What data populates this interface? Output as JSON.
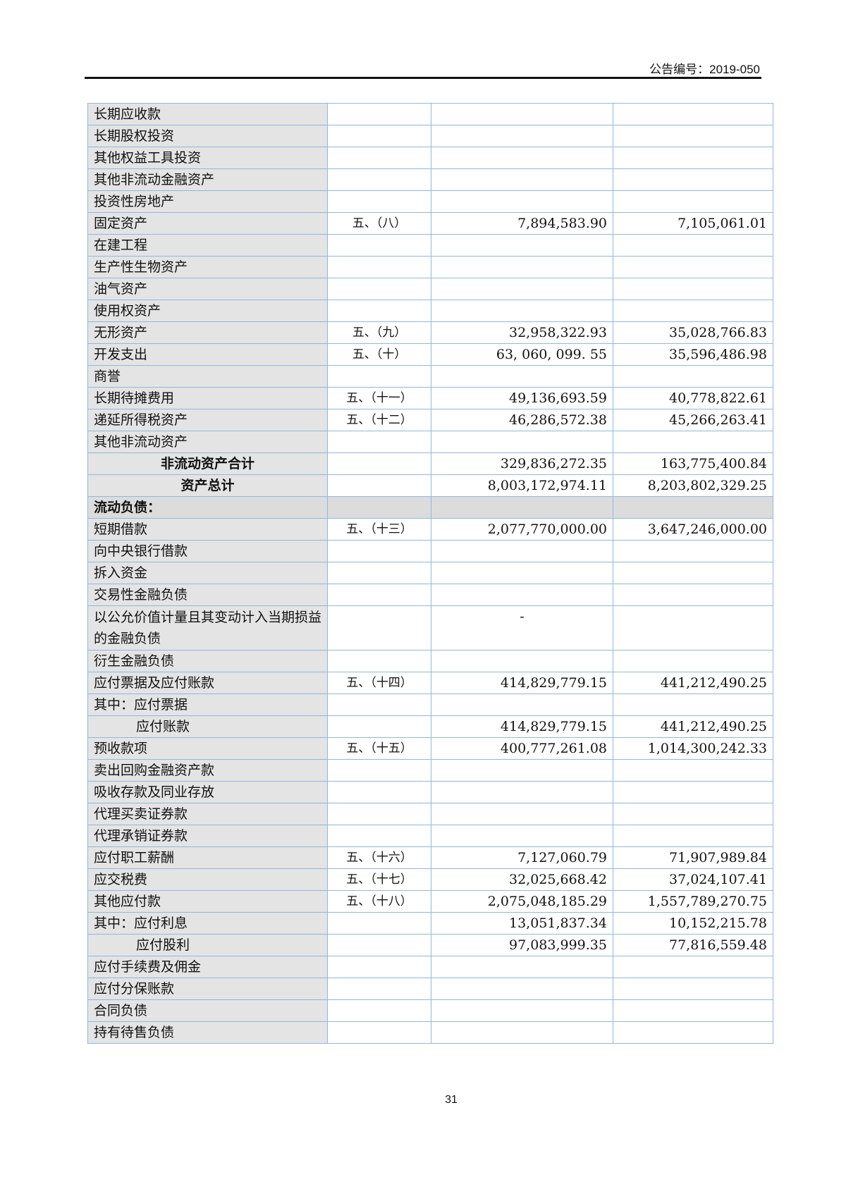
{
  "header": {
    "doc_number": "公告编号：2019-050"
  },
  "page_number": "31",
  "rows": [
    {
      "item": "长期应收款",
      "note": "",
      "current": "",
      "previous": ""
    },
    {
      "item": "长期股权投资",
      "note": "",
      "current": "",
      "previous": ""
    },
    {
      "item": "其他权益工具投资",
      "note": "",
      "current": "",
      "previous": ""
    },
    {
      "item": "其他非流动金融资产",
      "note": "",
      "current": "",
      "previous": ""
    },
    {
      "item": "投资性房地产",
      "note": "",
      "current": "",
      "previous": ""
    },
    {
      "item": "固定资产",
      "note": "五、（八）",
      "current": "7,894,583.90",
      "previous": "7,105,061.01"
    },
    {
      "item": "在建工程",
      "note": "",
      "current": "",
      "previous": ""
    },
    {
      "item": "生产性生物资产",
      "note": "",
      "current": "",
      "previous": ""
    },
    {
      "item": "油气资产",
      "note": "",
      "current": "",
      "previous": ""
    },
    {
      "item": "使用权资产",
      "note": "",
      "current": "",
      "previous": ""
    },
    {
      "item": "无形资产",
      "note": "五、（九）",
      "current": "32,958,322.93",
      "previous": "35,028,766.83"
    },
    {
      "item": "开发支出",
      "note": "五、（十）",
      "current": "63, 060, 099. 55",
      "previous": "35,596,486.98"
    },
    {
      "item": "商誉",
      "note": "",
      "current": "",
      "previous": ""
    },
    {
      "item": "长期待摊费用",
      "note": "五、（十一）",
      "current": "49,136,693.59",
      "previous": "40,778,822.61"
    },
    {
      "item": "递延所得税资产",
      "note": "五、（十二）",
      "current": "46,286,572.38",
      "previous": "45,266,263.41"
    },
    {
      "item": "其他非流动资产",
      "note": "",
      "current": "",
      "previous": ""
    },
    {
      "item": "非流动资产合计",
      "note": "",
      "current": "329,836,272.35",
      "previous": "163,775,400.84",
      "style": "total"
    },
    {
      "item": "资产总计",
      "note": "",
      "current": "8,003,172,974.11",
      "previous": "8,203,802,329.25",
      "style": "total"
    },
    {
      "item": "流动负债：",
      "note": "",
      "current": "",
      "previous": "",
      "style": "section"
    },
    {
      "item": "短期借款",
      "note": "五、（十三）",
      "current": "2,077,770,000.00",
      "previous": "3,647,246,000.00"
    },
    {
      "item": "向中央银行借款",
      "note": "",
      "current": "",
      "previous": ""
    },
    {
      "item": "拆入资金",
      "note": "",
      "current": "",
      "previous": ""
    },
    {
      "item": "交易性金融负债",
      "note": "",
      "current": "",
      "previous": ""
    },
    {
      "item": "以公允价值计量且其变动计入当期损益的金融负债",
      "note": "",
      "current": "-",
      "previous": "",
      "style": "double"
    },
    {
      "item": "衍生金融负债",
      "note": "",
      "current": "",
      "previous": ""
    },
    {
      "item": "应付票据及应付账款",
      "note": "五、（十四）",
      "current": "414,829,779.15",
      "previous": "441,212,490.25"
    },
    {
      "item": "其中：应付票据",
      "note": "",
      "current": "",
      "previous": ""
    },
    {
      "item": "应付账款",
      "note": "",
      "current": "414,829,779.15",
      "previous": "441,212,490.25",
      "style": "indent"
    },
    {
      "item": "预收款项",
      "note": "五、（十五）",
      "current": "400,777,261.08",
      "previous": "1,014,300,242.33"
    },
    {
      "item": "卖出回购金融资产款",
      "note": "",
      "current": "",
      "previous": ""
    },
    {
      "item": "吸收存款及同业存放",
      "note": "",
      "current": "",
      "previous": ""
    },
    {
      "item": "代理买卖证券款",
      "note": "",
      "current": "",
      "previous": ""
    },
    {
      "item": "代理承销证券款",
      "note": "",
      "current": "",
      "previous": ""
    },
    {
      "item": "应付职工薪酬",
      "note": "五、（十六）",
      "current": "7,127,060.79",
      "previous": "71,907,989.84"
    },
    {
      "item": "应交税费",
      "note": "五、（十七）",
      "current": "32,025,668.42",
      "previous": "37,024,107.41"
    },
    {
      "item": "其他应付款",
      "note": "五、（十八）",
      "current": "2,075,048,185.29",
      "previous": "1,557,789,270.75"
    },
    {
      "item": "其中：应付利息",
      "note": "",
      "current": "13,051,837.34",
      "previous": "10,152,215.78"
    },
    {
      "item": "应付股利",
      "note": "",
      "current": "97,083,999.35",
      "previous": "77,816,559.48",
      "style": "indent"
    },
    {
      "item": "应付手续费及佣金",
      "note": "",
      "current": "",
      "previous": ""
    },
    {
      "item": "应付分保账款",
      "note": "",
      "current": "",
      "previous": ""
    },
    {
      "item": "合同负债",
      "note": "",
      "current": "",
      "previous": ""
    },
    {
      "item": "持有待售负债",
      "note": "",
      "current": "",
      "previous": ""
    }
  ]
}
